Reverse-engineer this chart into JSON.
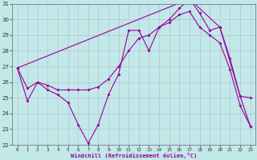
{
  "xlabel": "Windchill (Refroidissement éolien,°C)",
  "xlim": [
    -0.5,
    23.5
  ],
  "ylim": [
    22,
    31
  ],
  "yticks": [
    22,
    23,
    24,
    25,
    26,
    27,
    28,
    29,
    30,
    31
  ],
  "xticks": [
    0,
    1,
    2,
    3,
    4,
    5,
    6,
    7,
    8,
    9,
    10,
    11,
    12,
    13,
    14,
    15,
    16,
    17,
    18,
    19,
    20,
    21,
    22,
    23
  ],
  "background_color": "#c2e8e8",
  "grid_color": "#aaaacc",
  "line_color": "#990099",
  "line1_x": [
    0,
    1,
    2,
    3,
    4,
    5,
    6,
    7,
    8,
    9,
    10,
    11,
    12,
    13,
    14,
    15,
    16,
    17,
    18,
    19,
    20,
    21,
    22,
    23
  ],
  "line1_y": [
    26.9,
    24.8,
    26.0,
    25.5,
    25.2,
    24.7,
    23.3,
    22.1,
    23.3,
    25.2,
    26.5,
    29.3,
    29.3,
    28.0,
    29.5,
    30.0,
    30.7,
    31.3,
    30.4,
    29.3,
    29.5,
    27.5,
    25.1,
    25.0
  ],
  "line2_x": [
    0,
    1,
    2,
    3,
    4,
    5,
    6,
    7,
    8,
    9,
    10,
    11,
    12,
    13,
    14,
    15,
    16,
    17,
    18,
    19,
    20,
    21,
    22,
    23
  ],
  "line2_y": [
    26.9,
    25.6,
    26.0,
    25.8,
    25.5,
    25.5,
    25.5,
    25.5,
    25.7,
    26.2,
    27.0,
    28.0,
    28.8,
    29.0,
    29.5,
    29.8,
    30.3,
    30.5,
    29.5,
    29.0,
    28.5,
    26.8,
    24.5,
    23.2
  ],
  "line3_x": [
    0,
    17,
    20,
    22,
    23
  ],
  "line3_y": [
    26.9,
    31.3,
    29.5,
    25.1,
    23.2
  ]
}
